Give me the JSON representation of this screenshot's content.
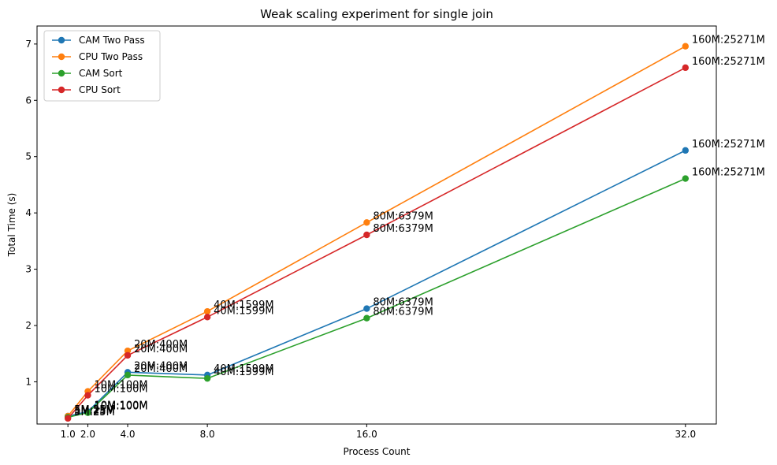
{
  "chart_data": {
    "type": "line",
    "title": "Weak scaling experiment for single join",
    "xlabel": "Process Count",
    "ylabel": "Total Time (s)",
    "x": [
      1,
      2,
      4,
      8,
      16,
      32
    ],
    "xticks": [
      "1.0",
      "2.0",
      "4.0",
      "8.0",
      "16.0",
      "32.0"
    ],
    "yticks": [
      "1",
      "2",
      "3",
      "4",
      "5",
      "6",
      "7"
    ],
    "xlim": [
      -0.55,
      33.55
    ],
    "ylim": [
      0.25,
      7.32
    ],
    "annotations": [
      "5M:25M",
      "10M:100M",
      "20M:400M",
      "40M:1599M",
      "80M:6379M",
      "160M:25271M"
    ],
    "legend_position": "upper-left",
    "grid": false,
    "series": [
      {
        "name": "CAM Two Pass",
        "color": "#1f77b4",
        "values": [
          0.39,
          0.47,
          1.17,
          1.12,
          2.3,
          5.11
        ]
      },
      {
        "name": "CPU Two Pass",
        "color": "#ff7f0e",
        "values": [
          0.39,
          0.83,
          1.55,
          2.25,
          3.83,
          6.96
        ]
      },
      {
        "name": "CAM Sort",
        "color": "#2ca02c",
        "values": [
          0.37,
          0.45,
          1.12,
          1.06,
          2.13,
          4.61
        ]
      },
      {
        "name": "CPU Sort",
        "color": "#d62728",
        "values": [
          0.35,
          0.76,
          1.47,
          2.15,
          3.61,
          6.58
        ]
      }
    ]
  }
}
